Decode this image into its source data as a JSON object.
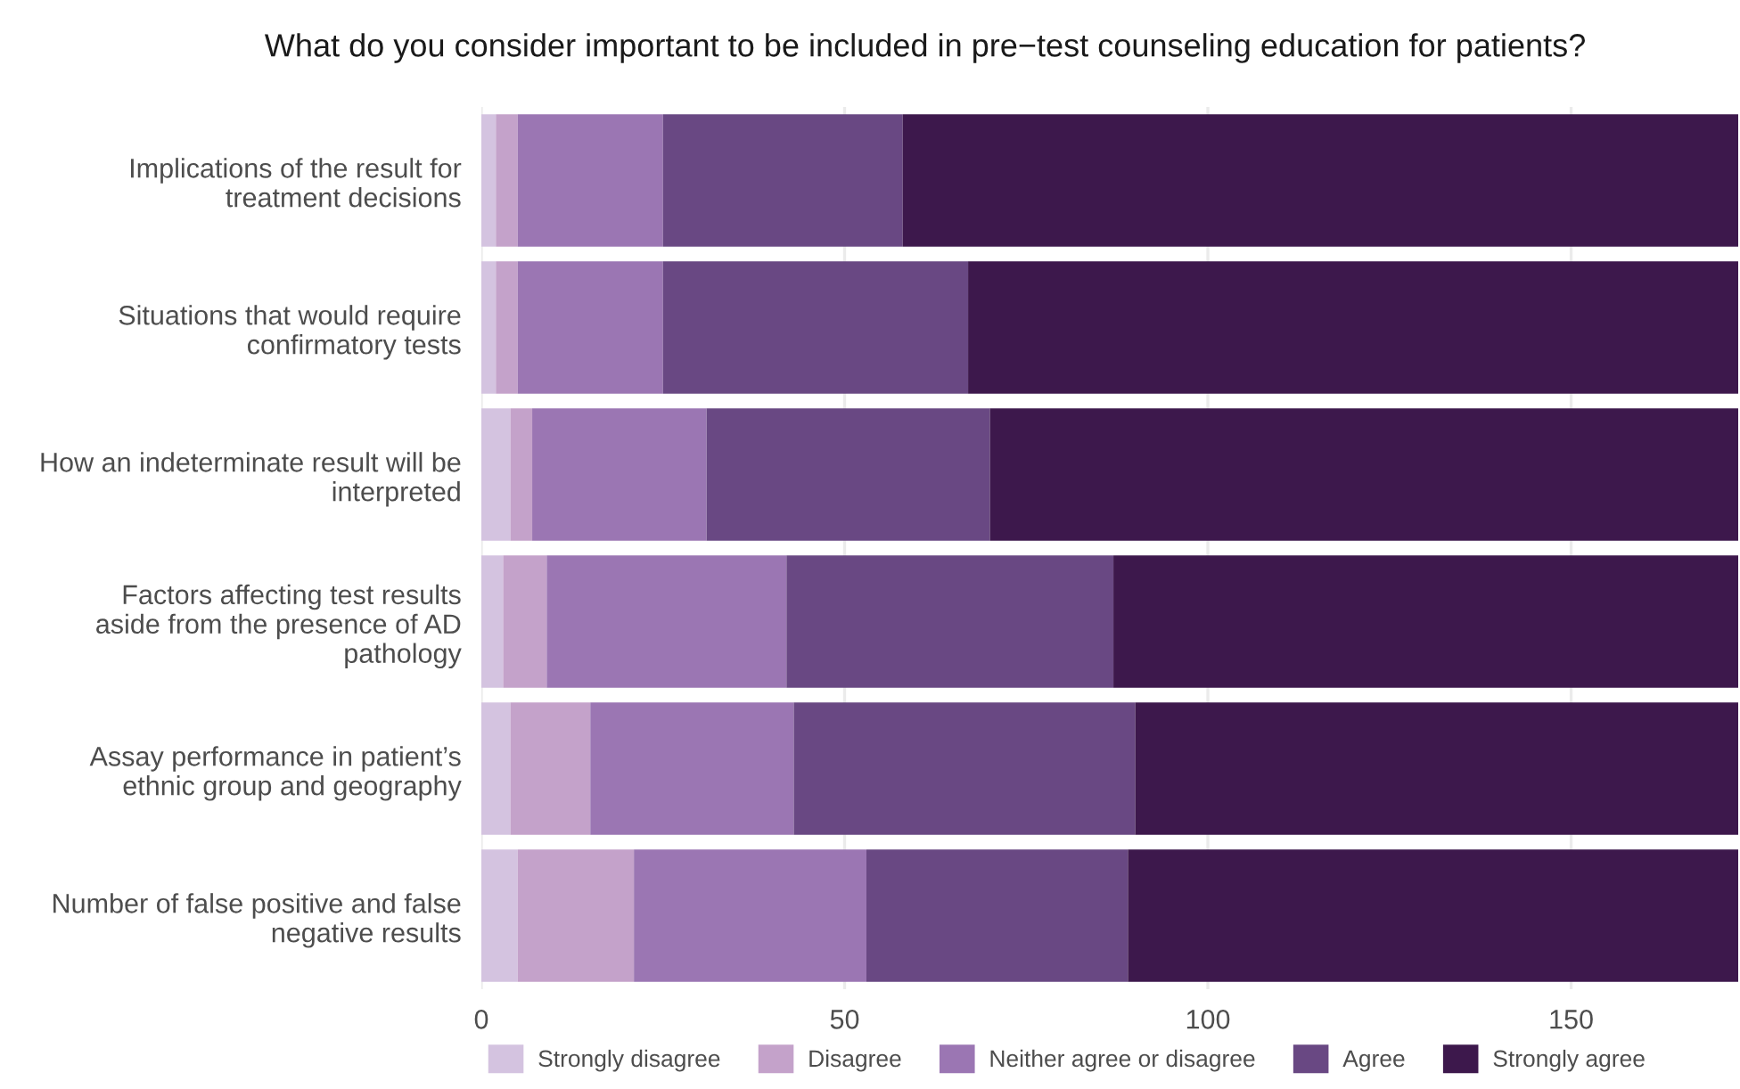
{
  "chart_data": {
    "type": "bar",
    "orientation": "horizontal",
    "stacked": true,
    "title": "What do you consider important to be included in pre−test counseling education for patients?",
    "categories": [
      "Implications of the result for\ntreatment decisions",
      "Situations that would require\nconfirmatory tests",
      "How an indeterminate result will be\ninterpreted",
      "Factors affecting test results\naside from the presence of AD\npathology",
      "Assay performance in patient’s\nethnic group and geography",
      "Number of false positive and false\nnegative results"
    ],
    "series": [
      {
        "name": "Strongly disagree",
        "color": "#d4c3e0",
        "values": [
          2,
          2,
          4,
          3,
          4,
          5
        ]
      },
      {
        "name": "Disagree",
        "color": "#c4a2ca",
        "values": [
          3,
          3,
          3,
          6,
          11,
          16
        ]
      },
      {
        "name": "Neither agree or disagree",
        "color": "#9b76b3",
        "values": [
          20,
          20,
          24,
          33,
          28,
          32
        ]
      },
      {
        "name": "Agree",
        "color": "#694883",
        "values": [
          33,
          42,
          39,
          45,
          47,
          36
        ]
      },
      {
        "name": "Strongly agree",
        "color": "#3d184c",
        "values": [
          115,
          106,
          103,
          86,
          83,
          84
        ]
      }
    ],
    "xlim": [
      0,
      173
    ],
    "xticks": [
      0,
      50,
      100,
      150
    ],
    "grid": "x",
    "legend": "bottom"
  }
}
